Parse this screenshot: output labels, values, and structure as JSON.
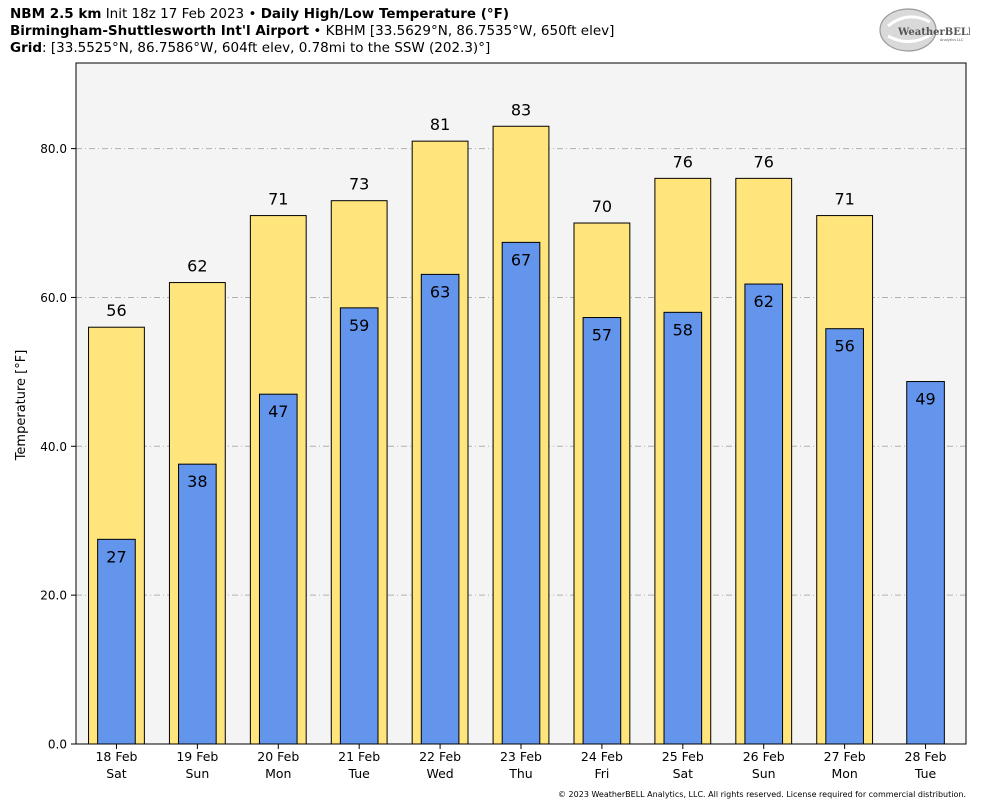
{
  "header": {
    "line1": {
      "model": "NBM 2.5 km",
      "init": "Init 18z 17 Feb 2023",
      "sep": "•",
      "title": "Daily High/Low Temperature (°F)"
    },
    "line2": {
      "station": "Birmingham-Shuttlesworth Int'l Airport",
      "sep": "•",
      "details": "KBHM [33.5629°N, 86.7535°W, 650ft elev]"
    },
    "line3": {
      "label": "Grid",
      "details": ": [33.5525°N, 86.7586°W, 604ft elev, 0.78mi to the SSW (202.3)°]"
    }
  },
  "logo": {
    "text": "WeatherBELL",
    "sub": "Analytics LLC"
  },
  "footer": "© 2023 WeatherBELL Analytics, LLC. All rights reserved. License required for commercial distribution.",
  "chart_data": {
    "type": "bar",
    "title": "Daily High/Low Temperature (°F)",
    "ylabel": "Temperature [°F]",
    "ylim": [
      0,
      91.5
    ],
    "yticks": [
      0,
      20,
      40,
      60,
      80
    ],
    "ytick_labels": [
      "0.0",
      "20.0",
      "40.0",
      "60.0",
      "80.0"
    ],
    "grid": "horizontal dash-dot",
    "categories": [
      {
        "date": "18 Feb",
        "day": "Sat"
      },
      {
        "date": "19 Feb",
        "day": "Sun"
      },
      {
        "date": "20 Feb",
        "day": "Mon"
      },
      {
        "date": "21 Feb",
        "day": "Tue"
      },
      {
        "date": "22 Feb",
        "day": "Wed"
      },
      {
        "date": "23 Feb",
        "day": "Thu"
      },
      {
        "date": "24 Feb",
        "day": "Fri"
      },
      {
        "date": "25 Feb",
        "day": "Sat"
      },
      {
        "date": "26 Feb",
        "day": "Sun"
      },
      {
        "date": "27 Feb",
        "day": "Mon"
      },
      {
        "date": "28 Feb",
        "day": "Tue"
      }
    ],
    "series": [
      {
        "key": "high",
        "color": "#FFE57C",
        "values": [
          56,
          62,
          71,
          73,
          81,
          83,
          70,
          76,
          76,
          71,
          null
        ],
        "labels": [
          "56",
          "62",
          "71",
          "73",
          "81",
          "83",
          "70",
          "76",
          "76",
          "71",
          null
        ]
      },
      {
        "key": "low",
        "color": "#6495ED",
        "values": [
          27.5,
          37.6,
          47,
          58.6,
          63.1,
          67.4,
          57.3,
          58,
          61.8,
          55.8,
          48.7
        ],
        "labels": [
          "27",
          "38",
          "47",
          "59",
          "63",
          "67",
          "57",
          "58",
          "62",
          "56",
          "49"
        ]
      }
    ],
    "colors": {
      "plot_bg": "#F4F4F4",
      "grid": "#B0B0B0",
      "frame": "#000000"
    }
  }
}
